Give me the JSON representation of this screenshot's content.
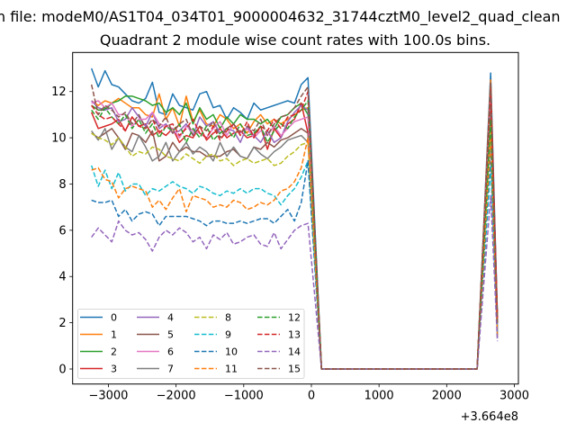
{
  "chart_data": {
    "type": "line",
    "suptitle": "n file: modeM0/AS1T04_034T01_9000004632_31744cztM0_level2_quad_clean",
    "title": "Quadrant 2 module wise count rates with 100.0s bins.",
    "xlabel": "",
    "ylabel": "",
    "x_offset_label": "+3.664e8",
    "xlim": [
      -3529,
      3060
    ],
    "ylim": [
      -0.65,
      13.69
    ],
    "xticks": [
      -3000,
      -2000,
      -1000,
      0,
      1000,
      2000,
      3000
    ],
    "xtick_labels": [
      "−3000",
      "−2000",
      "−1000",
      "0",
      "1000",
      "2000",
      "3000"
    ],
    "yticks": [
      0,
      2,
      4,
      6,
      8,
      10,
      12
    ],
    "ytick_labels": [
      "0",
      "2",
      "4",
      "6",
      "8",
      "10",
      "12"
    ],
    "grid": false,
    "legend_placement": "lower-left",
    "legend_columns": 4,
    "x": [
      -3250,
      -3150,
      -3050,
      -2950,
      -2850,
      -2750,
      -2650,
      -2550,
      -2450,
      -2350,
      -2250,
      -2150,
      -2050,
      -1950,
      -1850,
      -1750,
      -1650,
      -1550,
      -1450,
      -1350,
      -1250,
      -1150,
      -1050,
      -950,
      -850,
      -750,
      -650,
      -550,
      -450,
      -350,
      -250,
      -150,
      -50,
      150,
      250,
      350,
      450,
      550,
      650,
      750,
      850,
      950,
      1050,
      1150,
      1250,
      1350,
      1450,
      1550,
      1650,
      1750,
      1850,
      1950,
      2050,
      2150,
      2250,
      2350,
      2450,
      2650,
      2750
    ],
    "series": [
      {
        "name": "0",
        "color": "#1f77b4",
        "dashed": false,
        "values": [
          13.0,
          12.2,
          12.9,
          12.3,
          12.2,
          11.9,
          11.6,
          11.5,
          11.7,
          12.4,
          11.1,
          11.0,
          11.9,
          11.4,
          11.3,
          11.2,
          11.9,
          12.0,
          11.3,
          11.4,
          10.8,
          11.3,
          11.1,
          10.8,
          11.5,
          11.2,
          11.3,
          11.4,
          11.5,
          11.6,
          11.5,
          12.3,
          12.6,
          0,
          0,
          0,
          0,
          0,
          0,
          0,
          0,
          0,
          0,
          0,
          0,
          0,
          0,
          0,
          0,
          0,
          0,
          0,
          0,
          0,
          0,
          0,
          0,
          12.8,
          2.3
        ]
      },
      {
        "name": "1",
        "color": "#ff7f0e",
        "dashed": false,
        "values": [
          11.6,
          11.4,
          11.6,
          11.5,
          11.7,
          11.5,
          11.3,
          11.3,
          11.0,
          10.9,
          11.9,
          10.8,
          11.3,
          10.5,
          11.8,
          10.7,
          11.2,
          10.6,
          10.5,
          11.0,
          10.8,
          10.4,
          10.6,
          10.2,
          10.7,
          11.0,
          10.6,
          10.8,
          10.6,
          10.8,
          11.0,
          11.2,
          11.3,
          0,
          0,
          0,
          0,
          0,
          0,
          0,
          0,
          0,
          0,
          0,
          0,
          0,
          0,
          0,
          0,
          0,
          0,
          0,
          0,
          0,
          0,
          0,
          0,
          12.5,
          1.5
        ]
      },
      {
        "name": "2",
        "color": "#2ca02c",
        "dashed": false,
        "values": [
          11.4,
          11.2,
          11.2,
          11.5,
          11.6,
          11.8,
          11.8,
          11.7,
          11.6,
          11.4,
          11.5,
          11.1,
          11.3,
          11.0,
          11.5,
          10.6,
          11.3,
          10.8,
          11.0,
          10.4,
          10.9,
          10.6,
          11.0,
          10.8,
          10.8,
          10.6,
          10.8,
          10.4,
          10.9,
          11.0,
          11.3,
          11.5,
          11.0,
          0,
          0,
          0,
          0,
          0,
          0,
          0,
          0,
          0,
          0,
          0,
          0,
          0,
          0,
          0,
          0,
          0,
          0,
          0,
          0,
          0,
          0,
          0,
          0,
          12.0,
          2.0
        ]
      },
      {
        "name": "3",
        "color": "#d62728",
        "dashed": false,
        "values": [
          11.1,
          10.4,
          10.5,
          10.6,
          10.8,
          10.3,
          10.9,
          10.5,
          10.6,
          10.1,
          10.3,
          10.1,
          10.4,
          9.8,
          10.1,
          10.0,
          10.5,
          9.9,
          10.2,
          10.4,
          10.0,
          10.2,
          10.3,
          10.0,
          10.1,
          10.5,
          9.5,
          10.4,
          10.0,
          10.6,
          10.8,
          11.5,
          10.2,
          0,
          0,
          0,
          0,
          0,
          0,
          0,
          0,
          0,
          0,
          0,
          0,
          0,
          0,
          0,
          0,
          0,
          0,
          0,
          0,
          0,
          0,
          0,
          0,
          12.2,
          2.2
        ]
      },
      {
        "name": "4",
        "color": "#9467bd",
        "dashed": false,
        "values": [
          11.6,
          11.3,
          11.2,
          11.3,
          10.7,
          10.8,
          11.3,
          10.9,
          10.5,
          11.1,
          10.4,
          10.6,
          10.2,
          10.3,
          10.6,
          10.1,
          10.9,
          10.5,
          10.7,
          10.2,
          10.4,
          10.3,
          9.8,
          10.5,
          10.1,
          9.8,
          10.3,
          9.8,
          10.0,
          10.7,
          11.1,
          11.4,
          11.2,
          0,
          0,
          0,
          0,
          0,
          0,
          0,
          0,
          0,
          0,
          0,
          0,
          0,
          0,
          0,
          0,
          0,
          0,
          0,
          0,
          0,
          0,
          0,
          0,
          11.5,
          1.6
        ]
      },
      {
        "name": "5",
        "color": "#8c564b",
        "dashed": false,
        "values": [
          10.2,
          10.0,
          10.2,
          10.4,
          10.0,
          9.5,
          10.2,
          10.1,
          9.8,
          10.3,
          9.0,
          9.2,
          9.8,
          9.4,
          9.6,
          9.4,
          9.4,
          9.2,
          9.2,
          9.2,
          9.4,
          9.5,
          9.2,
          9.1,
          9.6,
          9.5,
          9.8,
          9.6,
          9.9,
          10.0,
          10.2,
          10.4,
          10.2,
          0,
          0,
          0,
          0,
          0,
          0,
          0,
          0,
          0,
          0,
          0,
          0,
          0,
          0,
          0,
          0,
          0,
          0,
          0,
          0,
          0,
          0,
          0,
          0,
          11.8,
          2.0
        ]
      },
      {
        "name": "6",
        "color": "#e377c2",
        "dashed": false,
        "values": [
          11.5,
          11.6,
          11.3,
          11.5,
          11.0,
          11.0,
          10.5,
          10.8,
          10.8,
          11.1,
          10.6,
          10.5,
          10.4,
          10.0,
          10.5,
          10.3,
          10.2,
          10.0,
          10.4,
          10.7,
          10.1,
          10.6,
          10.2,
          10.4,
          10.0,
          10.3,
          10.1,
          10.5,
          10.1,
          10.4,
          10.7,
          10.8,
          10.9,
          0,
          0,
          0,
          0,
          0,
          0,
          0,
          0,
          0,
          0,
          0,
          0,
          0,
          0,
          0,
          0,
          0,
          0,
          0,
          0,
          0,
          0,
          0,
          0,
          11.9,
          1.9
        ]
      },
      {
        "name": "7",
        "color": "#7f7f7f",
        "dashed": false,
        "values": [
          10.3,
          9.9,
          10.4,
          9.5,
          10.0,
          9.6,
          9.4,
          10.1,
          9.6,
          9.0,
          9.2,
          9.8,
          9.0,
          9.4,
          9.8,
          9.3,
          9.6,
          9.4,
          9.0,
          9.8,
          9.2,
          9.6,
          9.2,
          9.1,
          9.6,
          9.3,
          9.1,
          9.4,
          9.6,
          9.9,
          10.0,
          10.1,
          9.8,
          0,
          0,
          0,
          0,
          0,
          0,
          0,
          0,
          0,
          0,
          0,
          0,
          0,
          0,
          0,
          0,
          0,
          0,
          0,
          0,
          0,
          0,
          0,
          0,
          11.2,
          1.7
        ]
      },
      {
        "name": "8",
        "color": "#bcbd22",
        "dashed": true,
        "values": [
          10.2,
          10.0,
          9.9,
          9.7,
          10.0,
          9.6,
          9.2,
          9.4,
          9.3,
          9.6,
          9.5,
          9.2,
          9.1,
          9.0,
          9.3,
          9.1,
          8.9,
          9.2,
          9.3,
          9.0,
          9.1,
          8.8,
          9.0,
          9.1,
          8.9,
          9.0,
          9.1,
          8.8,
          8.9,
          9.2,
          9.4,
          9.7,
          9.8,
          0,
          0,
          0,
          0,
          0,
          0,
          0,
          0,
          0,
          0,
          0,
          0,
          0,
          0,
          0,
          0,
          0,
          0,
          0,
          0,
          0,
          0,
          0,
          0,
          10.5,
          2.3
        ]
      },
      {
        "name": "9",
        "color": "#17becf",
        "dashed": true,
        "values": [
          8.8,
          7.9,
          8.6,
          7.8,
          8.5,
          7.7,
          8.0,
          8.0,
          7.5,
          7.8,
          7.7,
          7.9,
          8.1,
          7.9,
          7.8,
          7.6,
          7.9,
          7.8,
          7.6,
          7.5,
          7.7,
          7.6,
          7.8,
          7.6,
          7.8,
          7.8,
          7.6,
          7.5,
          7.1,
          7.5,
          7.8,
          8.3,
          9.0,
          0,
          0,
          0,
          0,
          0,
          0,
          0,
          0,
          0,
          0,
          0,
          0,
          0,
          0,
          0,
          0,
          0,
          0,
          0,
          0,
          0,
          0,
          0,
          0,
          8.8,
          1.5
        ]
      },
      {
        "name": "10",
        "color": "#1f77b4",
        "dashed": true,
        "values": [
          7.3,
          7.2,
          7.2,
          7.3,
          6.6,
          6.9,
          6.4,
          6.7,
          6.8,
          6.7,
          6.2,
          6.6,
          6.6,
          6.6,
          6.6,
          6.5,
          6.4,
          6.2,
          6.4,
          6.4,
          6.3,
          6.3,
          6.4,
          6.3,
          6.4,
          6.5,
          6.5,
          6.3,
          6.6,
          6.9,
          6.4,
          7.2,
          9.0,
          0,
          0,
          0,
          0,
          0,
          0,
          0,
          0,
          0,
          0,
          0,
          0,
          0,
          0,
          0,
          0,
          0,
          0,
          0,
          0,
          0,
          0,
          0,
          0,
          9.5,
          1.3
        ]
      },
      {
        "name": "11",
        "color": "#ff7f0e",
        "dashed": true,
        "values": [
          8.6,
          8.7,
          8.2,
          8.1,
          7.4,
          7.8,
          7.9,
          7.8,
          7.7,
          7.0,
          7.3,
          6.9,
          7.4,
          7.8,
          6.8,
          7.5,
          7.4,
          7.3,
          7.0,
          7.1,
          7.0,
          7.3,
          7.2,
          6.9,
          7.0,
          7.2,
          7.1,
          7.3,
          7.7,
          7.8,
          8.1,
          8.7,
          10.0,
          0,
          0,
          0,
          0,
          0,
          0,
          0,
          0,
          0,
          0,
          0,
          0,
          0,
          0,
          0,
          0,
          0,
          0,
          0,
          0,
          0,
          0,
          0,
          0,
          10.0,
          1.4
        ]
      },
      {
        "name": "12",
        "color": "#2ca02c",
        "dashed": true,
        "values": [
          11.2,
          10.8,
          11.3,
          10.9,
          10.6,
          11.0,
          10.4,
          10.8,
          10.2,
          10.6,
          10.0,
          10.5,
          10.3,
          10.6,
          9.8,
          10.4,
          10.0,
          10.5,
          9.9,
          10.2,
          10.4,
          10.0,
          10.6,
          10.1,
          10.2,
          10.5,
          9.8,
          10.3,
          10.6,
          10.4,
          10.9,
          11.2,
          11.6,
          0,
          0,
          0,
          0,
          0,
          0,
          0,
          0,
          0,
          0,
          0,
          0,
          0,
          0,
          0,
          0,
          0,
          0,
          0,
          0,
          0,
          0,
          0,
          0,
          10.8,
          2.0
        ]
      },
      {
        "name": "13",
        "color": "#d62728",
        "dashed": true,
        "values": [
          11.4,
          11.0,
          10.8,
          10.9,
          10.6,
          10.3,
          10.9,
          10.5,
          10.4,
          10.8,
          10.2,
          10.5,
          10.6,
          10.1,
          10.4,
          10.8,
          10.2,
          10.0,
          10.5,
          9.9,
          10.3,
          10.6,
          10.1,
          10.7,
          10.0,
          10.5,
          10.3,
          10.8,
          10.4,
          10.9,
          11.0,
          11.2,
          12.0,
          0,
          0,
          0,
          0,
          0,
          0,
          0,
          0,
          0,
          0,
          0,
          0,
          0,
          0,
          0,
          0,
          0,
          0,
          0,
          0,
          0,
          0,
          0,
          0,
          12.0,
          2.2
        ]
      },
      {
        "name": "14",
        "color": "#9467bd",
        "dashed": true,
        "values": [
          5.7,
          6.1,
          5.8,
          5.5,
          6.4,
          6.0,
          5.8,
          5.9,
          5.6,
          5.1,
          5.7,
          6.0,
          5.8,
          6.1,
          5.9,
          5.5,
          5.7,
          5.2,
          5.8,
          5.6,
          5.9,
          5.4,
          5.5,
          5.7,
          5.8,
          5.4,
          5.3,
          5.9,
          5.2,
          5.6,
          6.0,
          6.2,
          6.3,
          0,
          0,
          0,
          0,
          0,
          0,
          0,
          0,
          0,
          0,
          0,
          0,
          0,
          0,
          0,
          0,
          0,
          0,
          0,
          0,
          0,
          0,
          0,
          0,
          7.5,
          1.2
        ]
      },
      {
        "name": "15",
        "color": "#8c564b",
        "dashed": true,
        "values": [
          12.3,
          11.0,
          11.4,
          11.2,
          10.9,
          11.1,
          10.6,
          11.0,
          10.4,
          10.8,
          10.5,
          10.9,
          10.2,
          10.6,
          10.8,
          10.1,
          10.5,
          10.3,
          10.7,
          10.0,
          10.4,
          10.6,
          10.2,
          10.5,
          10.3,
          10.8,
          10.1,
          10.6,
          10.9,
          11.0,
          11.3,
          11.8,
          12.2,
          0,
          0,
          0,
          0,
          0,
          0,
          0,
          0,
          0,
          0,
          0,
          0,
          0,
          0,
          0,
          0,
          0,
          0,
          0,
          0,
          0,
          0,
          0,
          0,
          12.4,
          2.0
        ]
      }
    ]
  }
}
